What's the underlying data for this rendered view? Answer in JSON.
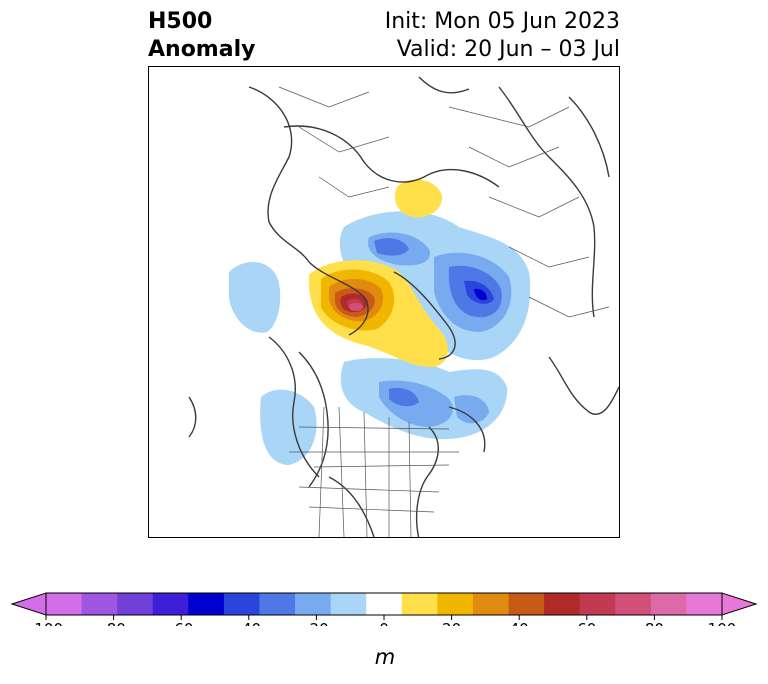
{
  "title": {
    "left_line1": "H500",
    "left_line2": "Anomaly",
    "right_line1": "Init: Mon 05 Jun 2023",
    "right_line2": "Valid: 20 Jun – 03 Jul"
  },
  "colorbar": {
    "unit_label": "m",
    "ticks": [
      "-100",
      "-80",
      "-60",
      "-40",
      "-20",
      "0",
      "20",
      "40",
      "60",
      "80",
      "100"
    ],
    "levels": [
      -100,
      -90,
      -80,
      -70,
      -60,
      -50,
      -40,
      -30,
      -20,
      -10,
      10,
      20,
      30,
      40,
      50,
      60,
      70,
      80,
      90,
      100
    ],
    "colors": [
      "#d36ee8",
      "#a055e0",
      "#7040d8",
      "#3c1fd6",
      "#0000d0",
      "#2a45dc",
      "#4f78e6",
      "#78aaf0",
      "#a9d5f7",
      "#ffffff",
      "#ffe04a",
      "#f1b600",
      "#e08a10",
      "#c85a18",
      "#b02a28",
      "#c23a52",
      "#d05078",
      "#dc6aa8",
      "#e878d8"
    ],
    "under_color": "#d36ee8",
    "over_color": "#e878d8"
  }
}
